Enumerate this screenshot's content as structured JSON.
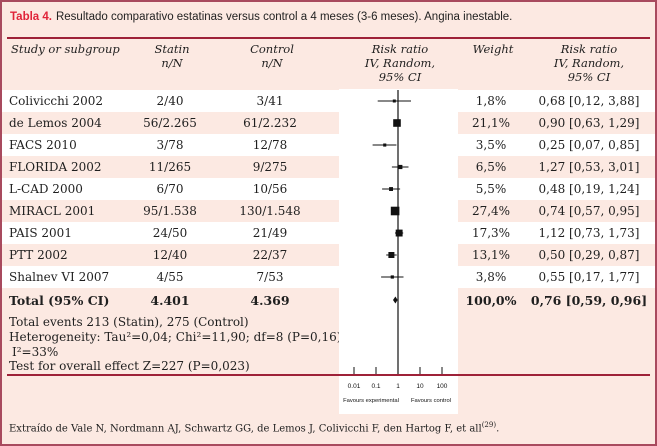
{
  "title": {
    "label": "Tabla 4.",
    "text": "Resultado comparativo estatinas versus control a 4 meses (3-6 meses). Angina inestable."
  },
  "header": {
    "study": "Study or subgroup",
    "statin": "Statin\nn/N",
    "control": "Control\nn/N",
    "risk_plot": "Risk ratio\nIV, Random,\n95% CI",
    "weight": "Weight",
    "risk_text": "Risk ratio\nIV, Random,\n95% CI"
  },
  "rows": [
    {
      "study": "Colivicchi 2002",
      "statin": "2/40",
      "control": "3/41",
      "weight": "1,8%",
      "rr": "0,68 [0,12, 3,88]"
    },
    {
      "study": "de Lemos 2004",
      "statin": "56/2.265",
      "control": "61/2.232",
      "weight": "21,1%",
      "rr": "0,90 [0,63, 1,29]"
    },
    {
      "study": "FACS 2010",
      "statin": "3/78",
      "control": "12/78",
      "weight": "3,5%",
      "rr": "0,25 [0,07, 0,85]"
    },
    {
      "study": "FLORIDA 2002",
      "statin": "11/265",
      "control": "9/275",
      "weight": "6,5%",
      "rr": "1,27 [0,53, 3,01]"
    },
    {
      "study": "L-CAD 2000",
      "statin": "6/70",
      "control": "10/56",
      "weight": "5,5%",
      "rr": "0,48 [0,19, 1,24]"
    },
    {
      "study": "MIRACL 2001",
      "statin": "95/1.538",
      "control": "130/1.548",
      "weight": "27,4%",
      "rr": "0,74 [0,57, 0,95]"
    },
    {
      "study": "PAIS 2001",
      "statin": "24/50",
      "control": "21/49",
      "weight": "17,3%",
      "rr": "1,12 [0,73, 1,73]"
    },
    {
      "study": "PTT 2002",
      "statin": "12/40",
      "control": "22/37",
      "weight": "13,1%",
      "rr": "0,50 [0,29, 0,87]"
    },
    {
      "study": "Shalnev VI 2007",
      "statin": "4/55",
      "control": "7/53",
      "weight": "3,8%",
      "rr": "0,55 [0,17, 1,77]"
    }
  ],
  "total_row": {
    "study": "Total (95% CI)",
    "statin": "4.401",
    "control": "4.369",
    "weight": "100,0%",
    "rr": "0,76 [0,59, 0,96]"
  },
  "footer": {
    "lines": [
      "Total events 213 (Statin), 275 (Control)",
      "Heterogeneity: Tau²=0,04; Chi²=11,90; df=8 (P=0,16);",
      "I²=33%",
      "Test for overall effect Z=227 (P=0,023)"
    ]
  },
  "footnote": {
    "text": "Extraído de Vale N, Nordmann AJ, Schwartz GG, de Lemos J, Colivicchi F, den Hartog F, et all",
    "ref": "(29)",
    "period": "."
  },
  "colors": {
    "background": "#fce9e2",
    "row_white": "#ffffff",
    "accent_red": "#e02339",
    "rule_red": "#9e2138",
    "border": "#a84a5e",
    "marker_black": "#111111"
  },
  "chart_data": {
    "type": "forest",
    "x_scale": "log10",
    "axis_ticks": [
      0.01,
      0.1,
      1,
      10,
      100
    ],
    "axis_tick_labels": [
      "0.01",
      "0.1",
      "1",
      "10",
      "100"
    ],
    "xlabel_left": "Favours experimental",
    "xlabel_right": "Favours control",
    "no_effect_line": 1,
    "studies": [
      {
        "name": "Colivicchi 2002",
        "rr": 0.68,
        "ci_low": 0.12,
        "ci_high": 3.88,
        "weight": 1.8
      },
      {
        "name": "de Lemos 2004",
        "rr": 0.9,
        "ci_low": 0.63,
        "ci_high": 1.29,
        "weight": 21.1
      },
      {
        "name": "FACS 2010",
        "rr": 0.25,
        "ci_low": 0.07,
        "ci_high": 0.85,
        "weight": 3.5
      },
      {
        "name": "FLORIDA 2002",
        "rr": 1.27,
        "ci_low": 0.53,
        "ci_high": 3.01,
        "weight": 6.5
      },
      {
        "name": "L-CAD 2000",
        "rr": 0.48,
        "ci_low": 0.19,
        "ci_high": 1.24,
        "weight": 5.5
      },
      {
        "name": "MIRACL 2001",
        "rr": 0.74,
        "ci_low": 0.57,
        "ci_high": 0.95,
        "weight": 27.4
      },
      {
        "name": "PAIS 2001",
        "rr": 1.12,
        "ci_low": 0.73,
        "ci_high": 1.73,
        "weight": 17.3
      },
      {
        "name": "PTT 2002",
        "rr": 0.5,
        "ci_low": 0.29,
        "ci_high": 0.87,
        "weight": 13.1
      },
      {
        "name": "Shalnev VI 2007",
        "rr": 0.55,
        "ci_low": 0.17,
        "ci_high": 1.77,
        "weight": 3.8
      }
    ],
    "total": {
      "name": "Total (95% CI)",
      "rr": 0.76,
      "ci_low": 0.59,
      "ci_high": 0.96,
      "weight": 100.0
    }
  }
}
